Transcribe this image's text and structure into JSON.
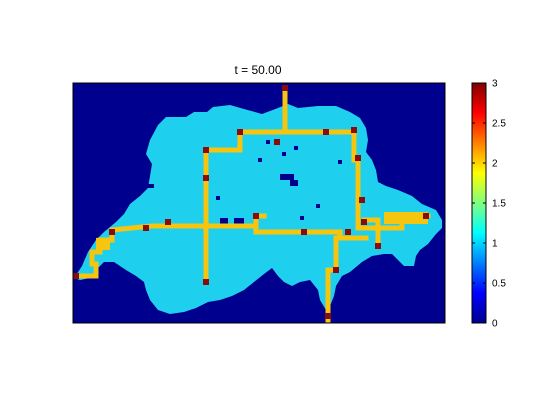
{
  "chart_data": {
    "type": "heatmap",
    "title": "t = 50.00",
    "colorbar": {
      "min": 0,
      "max": 3,
      "ticks": [
        "0",
        "0.5",
        "1",
        "1.5",
        "2",
        "2.5",
        "3"
      ],
      "colormap": "jet"
    },
    "categories": [
      {
        "value": 0,
        "meaning": "background",
        "color": "#00008f"
      },
      {
        "value": 1,
        "meaning": "land",
        "color": "#1fcfee"
      },
      {
        "value": 2,
        "meaning": "network",
        "color": "#f5c50f"
      },
      {
        "value": 3,
        "meaning": "node",
        "color": "#8a0b0b"
      }
    ]
  }
}
